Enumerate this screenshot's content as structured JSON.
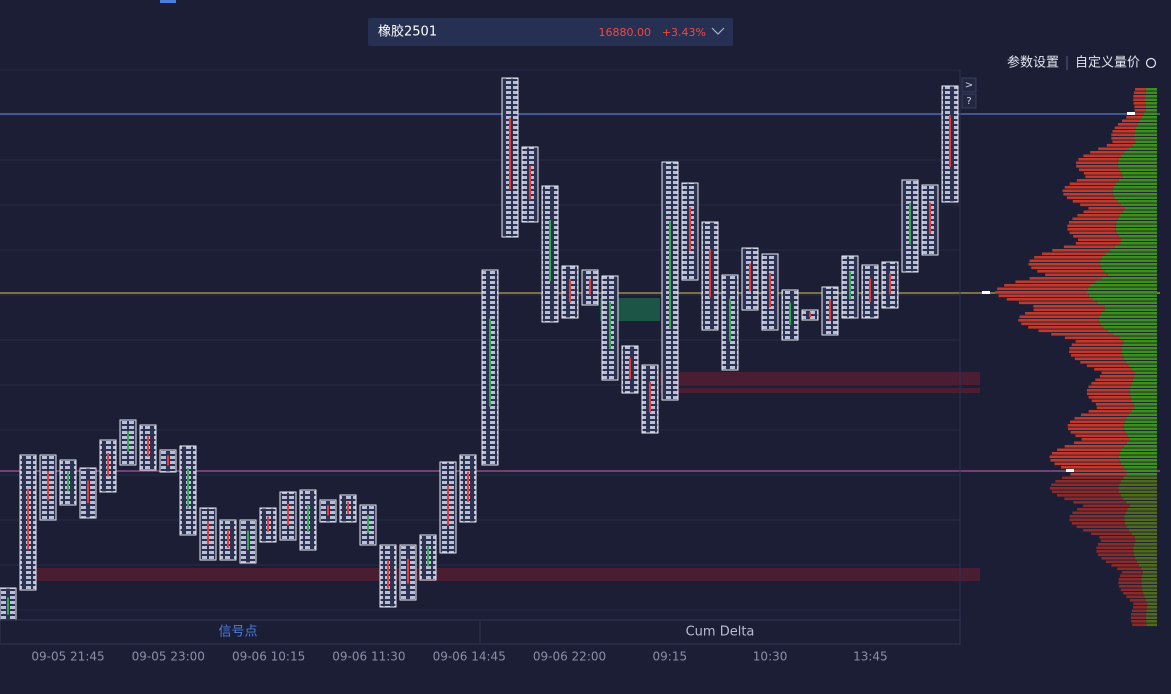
{
  "header": {
    "symbol": "橡胶2501",
    "price": "16880.00",
    "change": "+3.43%"
  },
  "toolbar": {
    "settings": "参数设置",
    "custom": "自定义量价"
  },
  "side_buttons": [
    ">",
    "?"
  ],
  "tabs": [
    "信号点",
    "Cum Delta"
  ],
  "time_labels": [
    "09-05 21:45",
    "09-05 23:00",
    "09-06 10:15",
    "09-06 11:30",
    "09-06 14:45",
    "09-06 22:00",
    "09:15",
    "10:30",
    "13:45"
  ]
}
